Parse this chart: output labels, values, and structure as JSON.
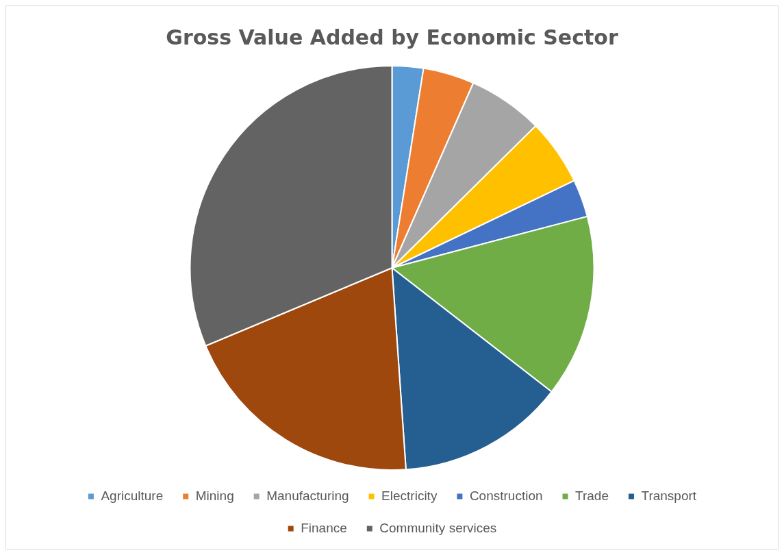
{
  "chart_data": {
    "type": "pie",
    "title": "Gross Value Added by Economic Sector",
    "categories": [
      "Agriculture",
      "Mining",
      "Manufacturing",
      "Electricity",
      "Construction",
      "Trade",
      "Transport",
      "Finance",
      "Community services"
    ],
    "values": [
      2.5,
      4.1,
      6.0,
      5.3,
      3.0,
      14.6,
      13.4,
      19.8,
      31.3
    ],
    "colors": [
      "#5b9bd5",
      "#ed7d31",
      "#a5a5a5",
      "#ffc000",
      "#4472c4",
      "#70ad47",
      "#255e91",
      "#9e480e",
      "#636363"
    ],
    "legend": "bottom"
  }
}
